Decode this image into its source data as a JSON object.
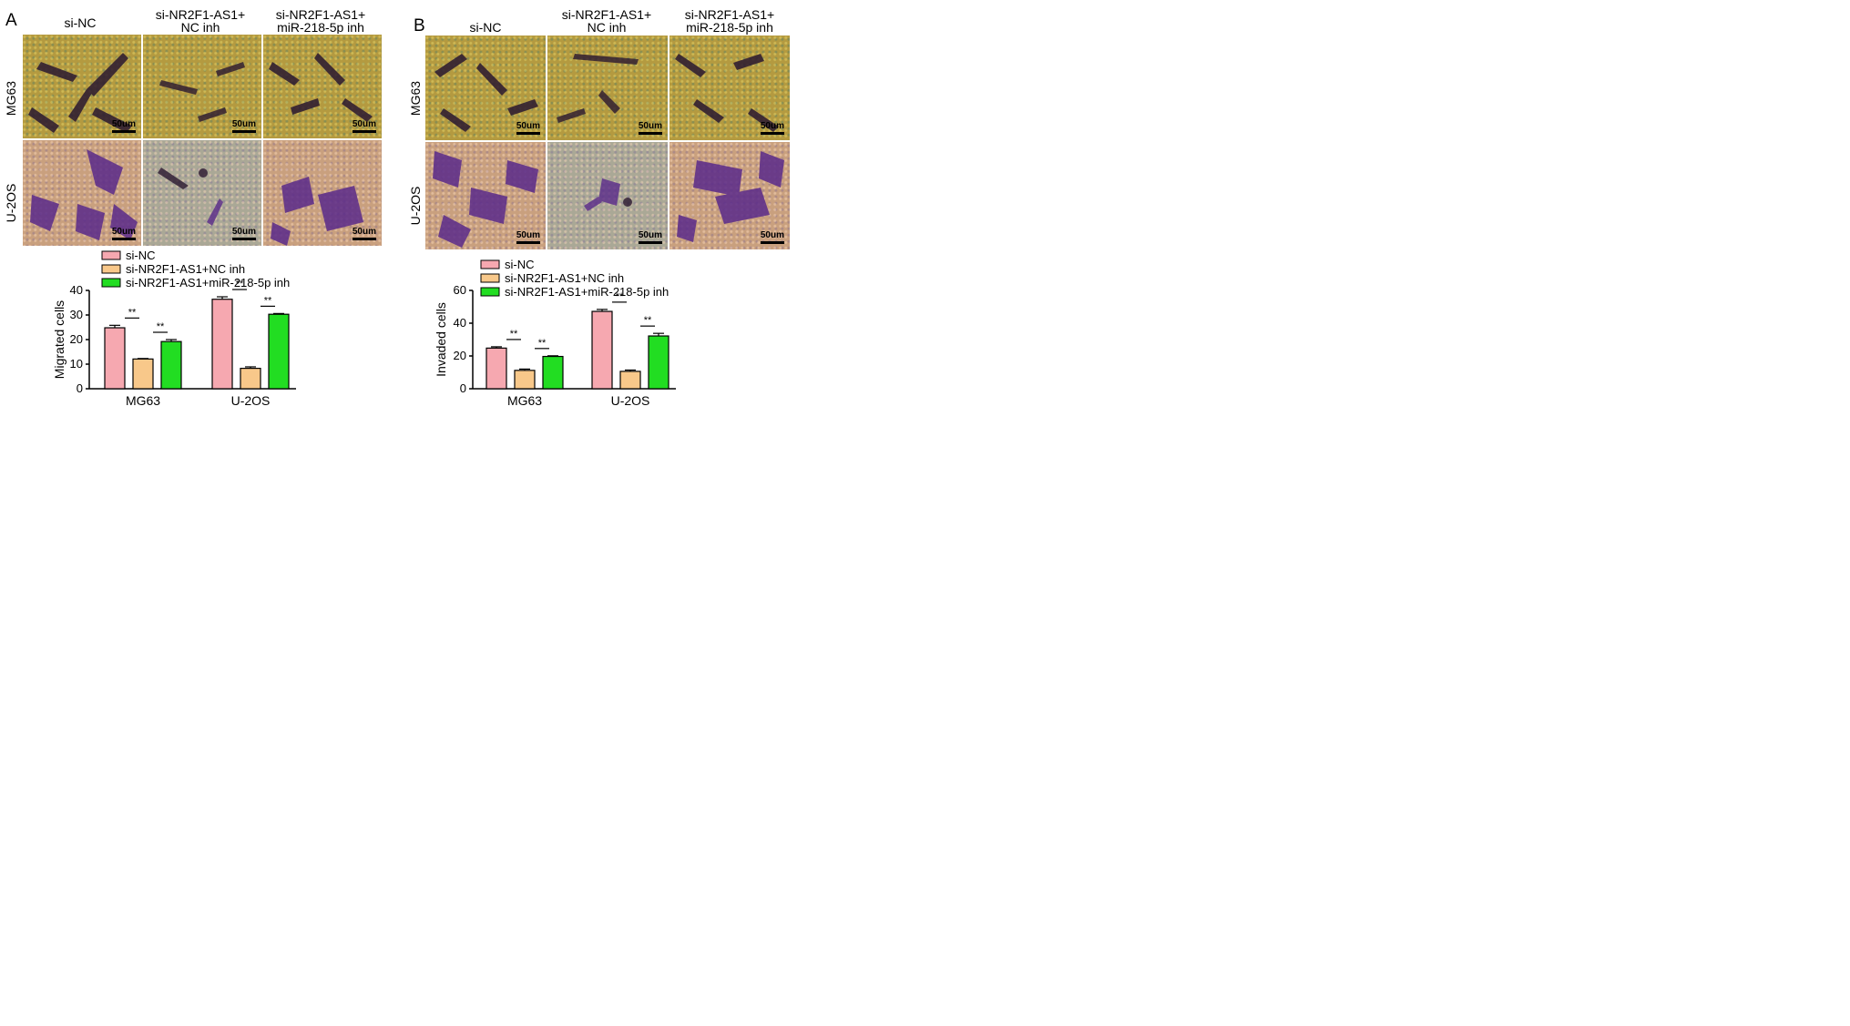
{
  "panels": {
    "A": {
      "letter": "A",
      "columns": [
        "si-NC",
        "si-NR2F1-AS1+\nNC inh",
        "si-NR2F1-AS1+\nmiR-218-5p inh"
      ],
      "rows": [
        "MG63",
        "U-2OS"
      ],
      "scale_label": "50um"
    },
    "B": {
      "letter": "B",
      "columns": [
        "si-NC",
        "si-NR2F1-AS1+\nNC inh",
        "si-NR2F1-AS1+\nmiR-218-5p inh"
      ],
      "rows": [
        "MG63",
        "U-2OS"
      ],
      "scale_label": "50um"
    }
  },
  "colors": {
    "si_nc": "#f6a8b0",
    "nc_inh": "#f8c88a",
    "mir_inh": "#22dd22",
    "purple_cells": "#5a2a8a",
    "dark_cells": "#2a1830"
  },
  "chart_data": [
    {
      "type": "bar",
      "panel": "A",
      "categories": [
        "MG63",
        "U-2OS"
      ],
      "ylabel": "Migrated cells",
      "ylim": [
        0,
        40
      ],
      "yticks": [
        0,
        10,
        20,
        30,
        40
      ],
      "legend_position": "top",
      "series": [
        {
          "name": "si-NC",
          "values": [
            24.8,
            36.4
          ],
          "errors": [
            1.0,
            1.0
          ],
          "color": "#f6a8b0"
        },
        {
          "name": "si-NR2F1-AS1+NC inh",
          "values": [
            12.1,
            8.3
          ],
          "errors": [
            0.2,
            0.6
          ],
          "color": "#f8c88a"
        },
        {
          "name": "si-NR2F1-AS1+miR-218-5p inh",
          "values": [
            19.2,
            30.3
          ],
          "errors": [
            0.8,
            0.3
          ],
          "color": "#22dd22"
        }
      ],
      "significance": [
        {
          "category": 0,
          "series_from": 0,
          "series_to": 1,
          "label": "**"
        },
        {
          "category": 0,
          "series_from": 1,
          "series_to": 2,
          "label": "**"
        },
        {
          "category": 1,
          "series_from": 0,
          "series_to": 1,
          "label": "**"
        },
        {
          "category": 1,
          "series_from": 1,
          "series_to": 2,
          "label": "**"
        }
      ]
    },
    {
      "type": "bar",
      "panel": "B",
      "categories": [
        "MG63",
        "U-2OS"
      ],
      "ylabel": "Invaded cells",
      "ylim": [
        0,
        60
      ],
      "yticks": [
        0,
        20,
        40,
        60
      ],
      "legend_position": "top",
      "series": [
        {
          "name": "si-NC",
          "values": [
            24.8,
            47.2
          ],
          "errors": [
            0.8,
            1.2
          ],
          "color": "#f6a8b0"
        },
        {
          "name": "si-NR2F1-AS1+NC inh",
          "values": [
            11.2,
            10.6
          ],
          "errors": [
            0.8,
            0.8
          ],
          "color": "#f8c88a"
        },
        {
          "name": "si-NR2F1-AS1+miR-218-5p inh",
          "values": [
            19.7,
            32.2
          ],
          "errors": [
            0.4,
            1.6
          ],
          "color": "#22dd22"
        }
      ],
      "significance": [
        {
          "category": 0,
          "series_from": 0,
          "series_to": 1,
          "label": "**"
        },
        {
          "category": 0,
          "series_from": 1,
          "series_to": 2,
          "label": "**"
        },
        {
          "category": 1,
          "series_from": 0,
          "series_to": 1,
          "label": "**"
        },
        {
          "category": 1,
          "series_from": 1,
          "series_to": 2,
          "label": "**"
        }
      ]
    }
  ]
}
